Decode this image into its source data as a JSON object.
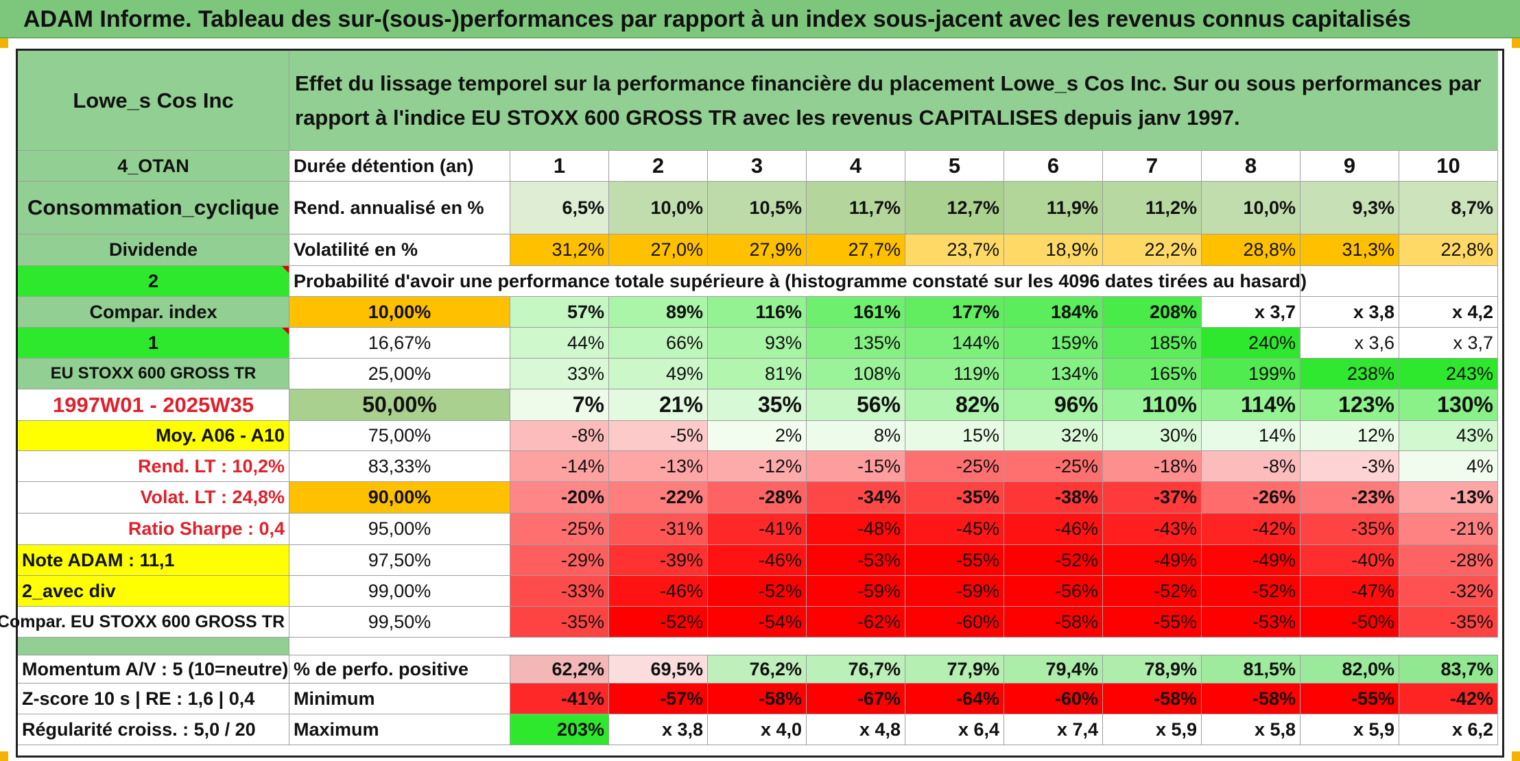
{
  "title": "ADAM Informe. Tableau des sur-(sous-)performances par rapport à un index sous-jacent avec les revenus connus capitalisés",
  "left": {
    "company": "Lowe_s Cos Inc",
    "code": "4_OTAN",
    "sector": "Consommation_cyclique",
    "dividend": "Dividende",
    "num2": "2",
    "compar_index": "Compar. index",
    "num1": "1",
    "index_name": "EU STOXX 600 GROSS TR",
    "period": "1997W01 - 2025W35",
    "moy": "Moy. A06 - A10",
    "rend_lt": "Rend. LT :   10,2%",
    "volat_lt": "Volat. LT :   24,8%",
    "sharpe": "Ratio Sharpe :   0,4",
    "note": "Note ADAM : 11,1",
    "avec_div": "2_avec div",
    "compar_full": "Compar. EU STOXX 600 GROSS TR",
    "momentum": "Momentum A/V : 5 (10=neutre)",
    "zscore": "Z-score 10 s | RE : 1,6 | 0,4",
    "regularite": "Régularité croiss. : 5,0 / 20"
  },
  "description": "Effet du lissage temporel sur la performance financière du placement Lowe_s Cos Inc. Sur ou sous performances par rapport à l'indice EU STOXX 600 GROSS TR avec les revenus CAPITALISES depuis janv 1997.",
  "prob_header": "Probabilité d'avoir une performance totale supérieure à (histogramme constaté sur les 4096 dates tirées au hasard)",
  "rows_labels": {
    "duree": "Durée détention (an)",
    "rend": "Rend. annualisé en %",
    "vol": "Volatilité en %",
    "pos": "% de perfo. positive",
    "min": "Minimum",
    "max": "Maximum"
  },
  "years": [
    "1",
    "2",
    "3",
    "4",
    "5",
    "6",
    "7",
    "8",
    "9",
    "10"
  ],
  "rend": [
    "6,5%",
    "10,0%",
    "10,5%",
    "11,7%",
    "12,7%",
    "11,9%",
    "11,2%",
    "10,0%",
    "9,3%",
    "8,7%"
  ],
  "vol": [
    "31,2%",
    "27,0%",
    "27,9%",
    "27,7%",
    "23,7%",
    "18,9%",
    "22,2%",
    "28,8%",
    "31,3%",
    "22,8%"
  ],
  "prob_rows": [
    {
      "level": "10,00%",
      "vals": [
        "57%",
        "89%",
        "116%",
        "161%",
        "177%",
        "184%",
        "208%",
        "x 3,7",
        "x 3,8",
        "x 4,2"
      ]
    },
    {
      "level": "16,67%",
      "vals": [
        "44%",
        "66%",
        "93%",
        "135%",
        "144%",
        "159%",
        "185%",
        "240%",
        "x 3,6",
        "x 3,7"
      ]
    },
    {
      "level": "25,00%",
      "vals": [
        "33%",
        "49%",
        "81%",
        "108%",
        "119%",
        "134%",
        "165%",
        "199%",
        "238%",
        "243%"
      ]
    },
    {
      "level": "50,00%",
      "vals": [
        "7%",
        "21%",
        "35%",
        "56%",
        "82%",
        "96%",
        "110%",
        "114%",
        "123%",
        "130%"
      ]
    },
    {
      "level": "75,00%",
      "vals": [
        "-8%",
        "-5%",
        "2%",
        "8%",
        "15%",
        "32%",
        "30%",
        "14%",
        "12%",
        "43%"
      ]
    },
    {
      "level": "83,33%",
      "vals": [
        "-14%",
        "-13%",
        "-12%",
        "-15%",
        "-25%",
        "-25%",
        "-18%",
        "-8%",
        "-3%",
        "4%"
      ]
    },
    {
      "level": "90,00%",
      "vals": [
        "-20%",
        "-22%",
        "-28%",
        "-34%",
        "-35%",
        "-38%",
        "-37%",
        "-26%",
        "-23%",
        "-13%"
      ]
    },
    {
      "level": "95,00%",
      "vals": [
        "-25%",
        "-31%",
        "-41%",
        "-48%",
        "-45%",
        "-46%",
        "-43%",
        "-42%",
        "-35%",
        "-21%"
      ]
    },
    {
      "level": "97,50%",
      "vals": [
        "-29%",
        "-39%",
        "-46%",
        "-53%",
        "-55%",
        "-52%",
        "-49%",
        "-49%",
        "-40%",
        "-28%"
      ]
    },
    {
      "level": "99,00%",
      "vals": [
        "-33%",
        "-46%",
        "-52%",
        "-59%",
        "-59%",
        "-56%",
        "-52%",
        "-52%",
        "-47%",
        "-32%"
      ]
    },
    {
      "level": "99,50%",
      "vals": [
        "-35%",
        "-52%",
        "-54%",
        "-62%",
        "-60%",
        "-58%",
        "-55%",
        "-53%",
        "-50%",
        "-35%"
      ]
    }
  ],
  "pos": [
    "62,2%",
    "69,5%",
    "76,2%",
    "76,7%",
    "77,9%",
    "79,4%",
    "78,9%",
    "81,5%",
    "82,0%",
    "83,7%"
  ],
  "min": [
    "-41%",
    "-57%",
    "-58%",
    "-67%",
    "-64%",
    "-60%",
    "-58%",
    "-58%",
    "-55%",
    "-42%"
  ],
  "max": [
    "203%",
    "x 3,8",
    "x 4,0",
    "x 4,8",
    "x 6,4",
    "x 7,4",
    "x 5,9",
    "x 5,8",
    "x 5,9",
    "x 6,2"
  ],
  "colors": {
    "title_bg": "#7dc77d",
    "label_green": "#92cf92",
    "highlight_yellow": "#ffff00",
    "amber": "#ffc000",
    "bright_green": "#2ee82e",
    "red": "#ff0000",
    "text_red": "#e0202a"
  }
}
